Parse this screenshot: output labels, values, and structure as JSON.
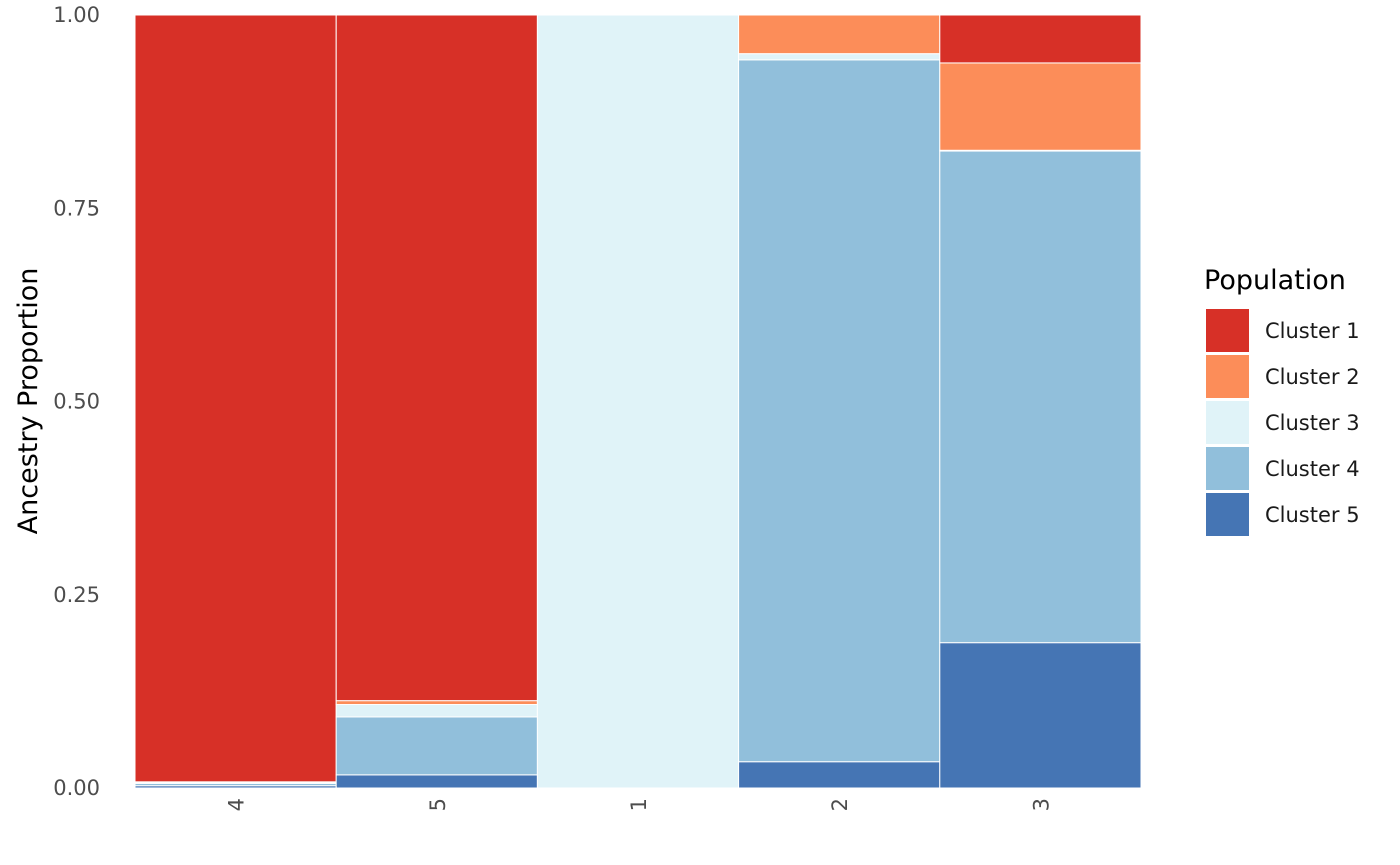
{
  "chart_data": {
    "type": "bar",
    "stacked": true,
    "categories": [
      "4",
      "5",
      "1",
      "2",
      "3"
    ],
    "series": [
      {
        "name": "Cluster 5",
        "color": "#4575B4",
        "values": [
          0.003,
          0.017,
          0.0,
          0.034,
          0.188
        ]
      },
      {
        "name": "Cluster 4",
        "color": "#91BFDB",
        "values": [
          0.003,
          0.075,
          0.0,
          0.908,
          0.636
        ]
      },
      {
        "name": "Cluster 3",
        "color": "#E0F3F8",
        "values": [
          0.001,
          0.016,
          1.0,
          0.008,
          0.001
        ]
      },
      {
        "name": "Cluster 2",
        "color": "#FC8D59",
        "values": [
          0.001,
          0.005,
          0.0,
          0.05,
          0.113
        ]
      },
      {
        "name": "Cluster 1",
        "color": "#D73027",
        "values": [
          0.992,
          0.887,
          0.0,
          0.0,
          0.062
        ]
      }
    ],
    "ylabel": "Ancestry Proportion",
    "xlabel": "",
    "ylim": [
      0,
      1
    ],
    "yticks": [
      "0.00",
      "0.25",
      "0.50",
      "0.75",
      "1.00"
    ],
    "legend": {
      "title": "Population",
      "position": "right",
      "entries": [
        "Cluster 1",
        "Cluster 2",
        "Cluster 3",
        "Cluster 4",
        "Cluster 5"
      ]
    },
    "grid": false
  }
}
